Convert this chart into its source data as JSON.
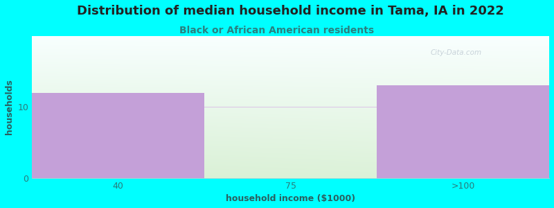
{
  "title": "Distribution of median household income in Tama, IA in 2022",
  "subtitle": "Black or African American residents",
  "xlabel": "household income ($1000)",
  "ylabel": "households",
  "categories": [
    "40",
    "75",
    ">100"
  ],
  "values": [
    12,
    0,
    13
  ],
  "bar_color_purple": "#c4a0d8",
  "bar_color_green": "#d8f0cc",
  "background_color": "#00ffff",
  "ylim": [
    0,
    20
  ],
  "yticks": [
    0,
    10
  ],
  "title_fontsize": 13,
  "subtitle_fontsize": 10,
  "label_fontsize": 9,
  "watermark": "City-Data.com",
  "title_color": "#222222",
  "subtitle_color": "#2a8080",
  "axis_label_color": "#2a6060",
  "tick_color": "#2a7a7a",
  "grid_color": "#ddc8e8",
  "plot_bg_colors": [
    "#e8f8e4",
    "#f0f8f0",
    "#e4f4f8",
    "#f8ffff"
  ],
  "bar_edge_color": "none"
}
